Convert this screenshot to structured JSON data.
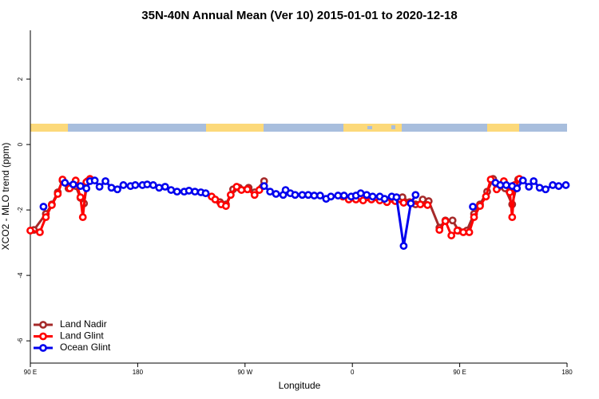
{
  "chart_data": {
    "type": "line",
    "title": "35N-40N Annual Mean (Ver 10)   2015-01-01 to 2020-12-18",
    "x_label": "Longitude",
    "y_label": "XCO2 - MLO trend (ppm)",
    "xlim": [
      90,
      540
    ],
    "ylim": [
      -6.68,
      3.49
    ],
    "xticks": [
      {
        "value": 90,
        "label": "90 E"
      },
      180,
      {
        "value": 270,
        "label": "90 W"
      },
      0,
      {
        "value": 450,
        "label": "90 E"
      },
      {
        "value": 540,
        "label": "180"
      }
    ],
    "yticks": [
      -6,
      -4,
      -2,
      0,
      2
    ],
    "legend": "bottom-left",
    "series": [
      {
        "name": "Land Nadir",
        "color": "#a52a2a",
        "x": [
          93,
          103,
          108,
          113,
          117,
          122,
          128,
          132,
          135,
          138,
          null,
          249,
          254,
          260,
          265,
          273,
          278,
          286,
          null,
          402,
          408,
          413,
          419,
          424,
          433,
          438,
          444,
          449,
          456,
          462,
          467,
          473,
          478,
          482,
          488,
          494,
          499
        ],
        "values": [
          -2.61,
          -2.12,
          -1.83,
          -1.46,
          -1.1,
          -1.34,
          -1.27,
          -1.63,
          -1.8,
          -1.12,
          null,
          -1.76,
          -1.83,
          -1.37,
          -1.32,
          -1.32,
          -1.46,
          -1.12,
          null,
          -1.61,
          -1.76,
          -1.83,
          -1.68,
          -1.73,
          -2.54,
          -2.32,
          -2.32,
          -2.63,
          -2.63,
          -2.12,
          -1.83,
          -1.44,
          -1.05,
          -1.32,
          -1.34,
          -1.83,
          -1.07
        ]
      },
      {
        "name": "Land Glint",
        "color": "#ff0000",
        "x": [
          90,
          98,
          103,
          108,
          113,
          117,
          123,
          128,
          132,
          134,
          137,
          140,
          null,
          242,
          245,
          250,
          254,
          258,
          263,
          267,
          272,
          278,
          282,
          null,
          352,
          357,
          363,
          369,
          376,
          383,
          389,
          396,
          403,
          409,
          417,
          423,
          null,
          433,
          438,
          443,
          448,
          453,
          458,
          462,
          467,
          472,
          476,
          481,
          487,
          492,
          494,
          496,
          500
        ],
        "values": [
          -2.63,
          -2.68,
          -2.22,
          -1.85,
          -1.51,
          -1.07,
          -1.34,
          -1.1,
          -1.61,
          -2.22,
          -1.15,
          -1.05,
          null,
          -1.59,
          -1.68,
          -1.83,
          -1.88,
          -1.54,
          -1.29,
          -1.39,
          -1.37,
          -1.54,
          -1.39,
          null,
          -1.59,
          -1.68,
          -1.68,
          -1.71,
          -1.68,
          -1.71,
          -1.76,
          -1.73,
          -1.78,
          -1.78,
          -1.83,
          -1.85,
          null,
          -2.61,
          -2.34,
          -2.78,
          -2.63,
          -2.68,
          -2.68,
          -2.22,
          -1.88,
          -1.59,
          -1.07,
          -1.37,
          -1.12,
          -1.46,
          -2.22,
          -1.24,
          -1.05
        ]
      },
      {
        "name": "Ocean Glint",
        "color": "#0000ee",
        "x": [
          101,
          null,
          119,
          126,
          132,
          137,
          140,
          144,
          148,
          153,
          158,
          163,
          168,
          174,
          178,
          184,
          188,
          193,
          198,
          203,
          208,
          213,
          219,
          223,
          228,
          233,
          237,
          null,
          286,
          291,
          296,
          302,
          304,
          308,
          312,
          318,
          323,
          328,
          333,
          338,
          342,
          348,
          353,
          359,
          363,
          367,
          372,
          377,
          383,
          387,
          393,
          397,
          403,
          409,
          413,
          null,
          461,
          null,
          480,
          484,
          489,
          494,
          498,
          503,
          508,
          512,
          517,
          522,
          528,
          533,
          539
        ],
        "values": [
          -1.9,
          null,
          -1.17,
          -1.22,
          -1.27,
          -1.34,
          -1.12,
          -1.1,
          -1.29,
          -1.12,
          -1.32,
          -1.37,
          -1.24,
          -1.27,
          -1.24,
          -1.24,
          -1.22,
          -1.24,
          -1.32,
          -1.29,
          -1.39,
          -1.44,
          -1.44,
          -1.41,
          -1.44,
          -1.46,
          -1.49,
          null,
          -1.27,
          -1.44,
          -1.51,
          -1.54,
          -1.39,
          -1.49,
          -1.54,
          -1.54,
          -1.54,
          -1.56,
          -1.56,
          -1.66,
          -1.59,
          -1.56,
          -1.56,
          -1.59,
          -1.56,
          -1.49,
          -1.54,
          -1.59,
          -1.59,
          -1.66,
          -1.59,
          -1.61,
          -3.1,
          -1.8,
          -1.54,
          null,
          -1.9,
          null,
          -1.17,
          -1.24,
          -1.24,
          -1.27,
          -1.34,
          -1.1,
          -1.29,
          -1.12,
          -1.32,
          -1.37,
          -1.24,
          -1.27,
          -1.24
        ]
      }
    ]
  }
}
